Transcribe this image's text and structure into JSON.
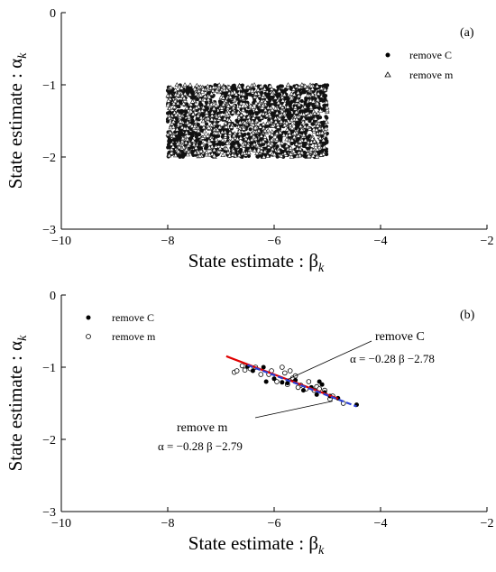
{
  "chart_data": [
    {
      "type": "scatter",
      "panel_label": "(a)",
      "xlabel": "State estimate : β",
      "xlabel_sub": "k",
      "ylabel": "State estimate : α",
      "ylabel_sub": "k",
      "xlim": [
        -10,
        -2
      ],
      "ylim": [
        -3,
        0
      ],
      "xticks": [
        -10,
        -8,
        -6,
        -4,
        -2
      ],
      "yticks": [
        0,
        -1,
        -2,
        -3
      ],
      "grid": false,
      "legend_position": "top-right",
      "series": [
        {
          "name": "remove C",
          "marker": "filled-circle",
          "distribution": "dense uniform cloud",
          "x_range": [
            -8,
            -5
          ],
          "y_range": [
            -2,
            -1
          ]
        },
        {
          "name": "remove m",
          "marker": "open-triangle",
          "distribution": "dense uniform cloud",
          "x_range": [
            -8,
            -5
          ],
          "y_range": [
            -2,
            -1
          ]
        }
      ]
    },
    {
      "type": "scatter",
      "panel_label": "(b)",
      "xlabel": "State estimate : β",
      "xlabel_sub": "k",
      "ylabel": "State estimate : α",
      "ylabel_sub": "k",
      "xlim": [
        -10,
        -2
      ],
      "ylim": [
        -3,
        0
      ],
      "xticks": [
        -10,
        -8,
        -6,
        -4,
        -2
      ],
      "yticks": [
        0,
        -1,
        -2,
        -3
      ],
      "grid": false,
      "legend_position": "top-left",
      "series": [
        {
          "name": "remove C",
          "marker": "filled-circle",
          "points": [
            [
              -6.5,
              -0.99
            ],
            [
              -6.4,
              -1.05
            ],
            [
              -6.2,
              -1.0
            ],
            [
              -6.15,
              -1.2
            ],
            [
              -6.0,
              -1.16
            ],
            [
              -5.85,
              -1.21
            ],
            [
              -5.75,
              -1.22
            ],
            [
              -5.6,
              -1.18
            ],
            [
              -5.45,
              -1.32
            ],
            [
              -5.3,
              -1.28
            ],
            [
              -5.2,
              -1.38
            ],
            [
              -5.15,
              -1.2
            ],
            [
              -5.1,
              -1.24
            ],
            [
              -5.05,
              -1.35
            ],
            [
              -4.95,
              -1.4
            ],
            [
              -4.8,
              -1.43
            ],
            [
              -4.45,
              -1.52
            ]
          ]
        },
        {
          "name": "remove m",
          "marker": "open-circle",
          "points": [
            [
              -6.75,
              -1.07
            ],
            [
              -6.7,
              -1.05
            ],
            [
              -6.6,
              -0.98
            ],
            [
              -6.55,
              -1.04
            ],
            [
              -6.35,
              -1.0
            ],
            [
              -6.25,
              -1.1
            ],
            [
              -6.1,
              -1.1
            ],
            [
              -6.05,
              -1.05
            ],
            [
              -5.95,
              -1.2
            ],
            [
              -5.85,
              -1.0
            ],
            [
              -5.8,
              -1.08
            ],
            [
              -5.75,
              -1.24
            ],
            [
              -5.7,
              -1.05
            ],
            [
              -5.65,
              -1.15
            ],
            [
              -5.6,
              -1.12
            ],
            [
              -5.5,
              -1.25
            ],
            [
              -5.4,
              -1.3
            ],
            [
              -5.35,
              -1.2
            ],
            [
              -5.25,
              -1.32
            ],
            [
              -5.2,
              -1.27
            ],
            [
              -5.15,
              -1.3
            ],
            [
              -5.05,
              -1.32
            ],
            [
              -4.95,
              -1.44
            ],
            [
              -4.9,
              -1.4
            ],
            [
              -4.7,
              -1.5
            ],
            [
              -6.45,
              -1.02
            ],
            [
              -5.55,
              -1.28
            ]
          ]
        }
      ],
      "fit_lines": [
        {
          "label": "remove C",
          "equation": "α = −0.28 β −2.78",
          "slope": -0.28,
          "intercept": -2.78,
          "x_range": [
            -6.9,
            -4.8
          ],
          "color": "#e00000",
          "style": "solid"
        },
        {
          "label": "remove m",
          "equation": "α = −0.28 β −2.79",
          "slope": -0.28,
          "intercept": -2.79,
          "x_range": [
            -6.5,
            -4.45
          ],
          "color": "#2a3fd6",
          "style": "dashed"
        }
      ]
    }
  ]
}
